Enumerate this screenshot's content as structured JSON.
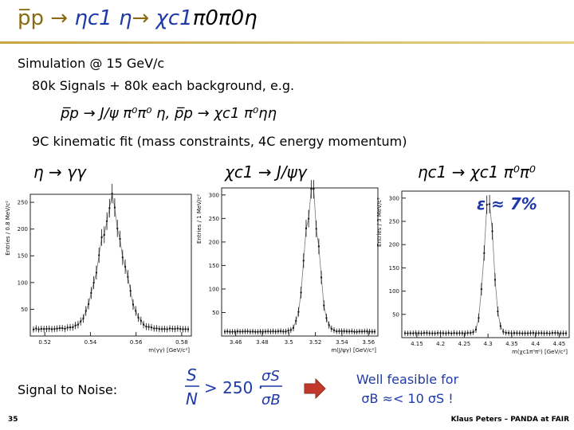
{
  "slide": {
    "title_parts": {
      "pp": "p̅p",
      "arrow": "→",
      "eta_c1": "ηc1",
      "eta": "η",
      "chi": "χc1",
      "pi0pi0": "π0π0",
      "eta2": "η"
    },
    "simulation": "Simulation @ 15 GeV/c",
    "signals": "80k Signals + 80k each background, e.g.",
    "reactions": "p̅p → J/ψ π⁰π⁰ η,  p̅p → χc1 π⁰ηη",
    "fit": "9C kinematic fit (mass constraints, 4C energy momentum)",
    "efficiency": "ε ≈ 7%",
    "signal_to_noise": "Signal to Noise:",
    "s2n_formula": "S/N > 250 · σS/σB",
    "feasible_line1": "Well feasible for",
    "feasible_line2": "σB ≈< 10 σS !",
    "footer_left": "35",
    "footer_right": "Klaus Peters – PANDA at FAIR"
  },
  "panels": [
    {
      "title": "η → γγ",
      "ylabel": "Entries / 0.8 MeV/c²",
      "xlabel": "m(γγ) [GeV/c²]",
      "xticks": [
        "0.52",
        "0.54",
        "0.56",
        "0.58"
      ],
      "yticks": [
        "50",
        "100",
        "150",
        "200",
        "250"
      ]
    },
    {
      "title": "χc1 → J/ψγ",
      "ylabel": "Entries / 1 MeV/c²",
      "xlabel": "m(J/ψγ) [GeV/c²]",
      "xticks": [
        "3.46",
        "3.48",
        "3.5",
        "3.52",
        "3.54",
        "3.56"
      ],
      "yticks": [
        "50",
        "100",
        "150",
        "200",
        "250",
        "300"
      ]
    },
    {
      "title": "ηc1 → χc1 π⁰π⁰",
      "ylabel": "Entries / 3 MeV/c²",
      "xlabel": "m(χc1π⁰π⁰) [GeV/c²]",
      "xticks": [
        "4.15",
        "4.2",
        "4.25",
        "4.3",
        "4.35",
        "4.4",
        "4.45"
      ],
      "yticks": [
        "50",
        "100",
        "150",
        "200",
        "250",
        "300"
      ]
    }
  ],
  "colors": {
    "title_gold": "#8a6a14",
    "accent_blue": "#1f3aa8",
    "arrow_red": "#c0392b"
  }
}
